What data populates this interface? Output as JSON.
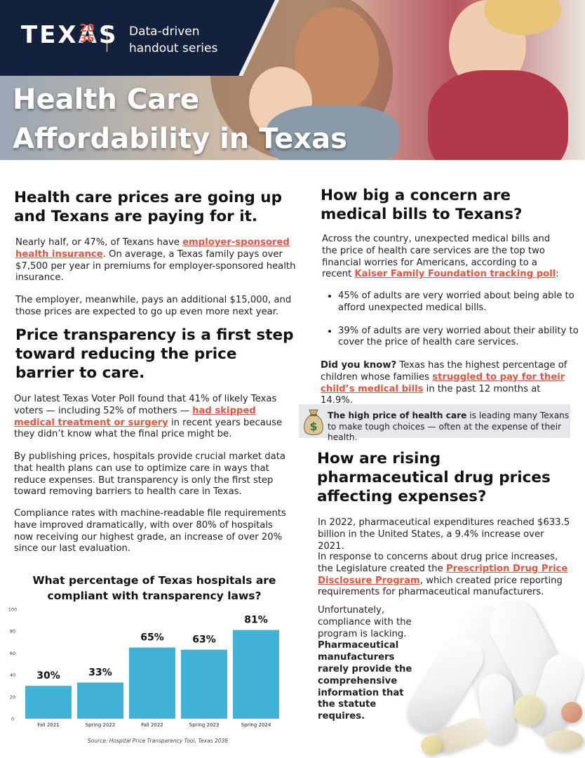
{
  "header": {
    "logo_word": "TEXAS",
    "logo_number_top": "20",
    "logo_number_bottom": "36",
    "series_line1": "Data-driven",
    "series_line2": "handout series",
    "title_line1": "Health Care",
    "title_line2": "Affordability in Texas"
  },
  "left": {
    "prices_heading": "Health care prices are going up and Texans are paying for it.",
    "prices_p1_a": "Nearly half, or 47%, of Texans have ",
    "prices_p1_link": "employer-sponsored health insurance",
    "prices_p1_b": ". On average, a Texas family pays over $7,500 per year in premiums for employer-sponsored health insurance.",
    "prices_p2": "The employer, meanwhile, pays an additional $15,000, and those prices are expected to go up even more next year.",
    "transp_heading": "Price transparency is a first step toward reducing the price barrier to care.",
    "transp_p1_a": "Our latest Texas Voter Poll found that 41% of likely Texas voters — including 52% of mothers — ",
    "transp_p1_link": "had skipped medical treatment or surgery",
    "transp_p1_b": " in recent years because they didn’t know what the final price might be.",
    "transp_p2": "By publishing prices, hospitals provide crucial market data that health plans can use to optimize care in ways that reduce expenses. But transparency is only the first step toward removing barriers to health care in Texas.",
    "transp_p3": "Compliance rates with machine-readable file requirements have improved dramatically, with over 80% of hospitals now receiving our highest grade, an increase of over 20% since our last evaluation."
  },
  "right": {
    "bills_heading": "How big a concern are medical bills to Texans?",
    "bills_p_a": "Across the country, unexpected medical bills and the price of health care services are the top two financial worries for Americans, according to a recent ",
    "bills_p_link": "Kaiser Family Foundation tracking poll",
    "bills_p_b": ":",
    "bullets": [
      "45% of adults are very worried about being able to afford unexpected medical bills.",
      "39% of adults are very worried about their ability to cover the price of health care services."
    ],
    "didyou_bold": "Did you know?",
    "didyou_a": " Texas has the highest percentage of children whose families ",
    "didyou_link": "struggled to pay for their child’s medical bills",
    "didyou_b": " in the past 12 months at 14.9%.",
    "callout_bold": "The high price of health care",
    "callout_rest": " is leading many Texans to make tough choices — often at the expense of their health.",
    "drug_heading": "How are rising pharmaceutical drug prices affecting expenses?",
    "drug_p1": "In 2022, pharmaceutical expenditures reached $633.5 billion in the United States, a 9.4% increase over 2021.",
    "drug_p2_a": "In response to concerns about drug price increases, the Legislature created the ",
    "drug_p2_link": "Prescription Drug Price Disclosure Program",
    "drug_p2_b": ", which created price reporting requirements for pharmaceutical manufacturers.",
    "drug_p3_a": "Unfortunately, compliance with the program is lacking. ",
    "drug_p3_bold": "Pharmaceutical manufacturers rarely provide the comprehensive information that the statute requires."
  },
  "colors": {
    "navy": "#14213d",
    "accent": "#e4553c",
    "bar": "#3fb2d6",
    "callout_bg": "#e6e7ea"
  },
  "icons": [
    "money-bag-icon"
  ],
  "chart_data": {
    "type": "bar",
    "title": "What percentage of Texas hospitals are compliant with transparency laws?",
    "categories": [
      "Fall 2021",
      "Spring 2022",
      "Fall 2022",
      "Spring 2023",
      "Spring 2024"
    ],
    "values": [
      30,
      33,
      65,
      63,
      81
    ],
    "data_labels": [
      "30%",
      "33%",
      "65%",
      "63%",
      "81%"
    ],
    "ylim": [
      0,
      100
    ],
    "yticks": [
      "0",
      "20",
      "40",
      "60",
      "80",
      "100"
    ],
    "xlabel": "",
    "ylabel": "",
    "grid": false,
    "source": "Source: Hospital Price Transparency Tool, Texas 2036"
  }
}
